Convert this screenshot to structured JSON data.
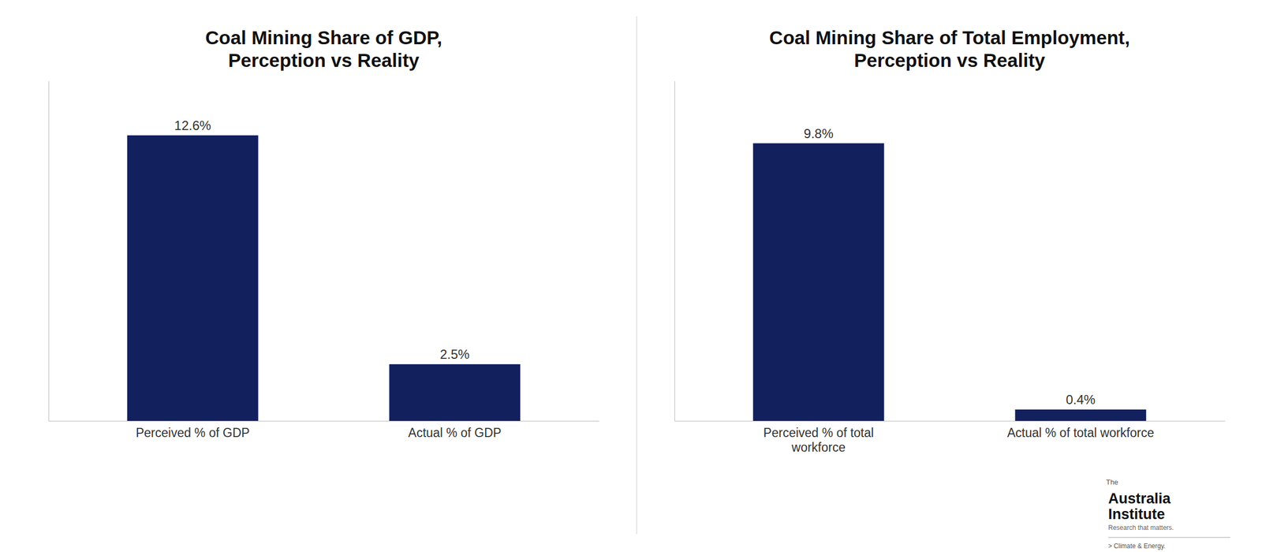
{
  "chart_data": [
    {
      "type": "bar",
      "title": "Coal Mining Share of GDP,\nPerception vs Reality",
      "categories": [
        "Perceived % of GDP",
        "Actual % of GDP"
      ],
      "values": [
        12.6,
        2.5
      ],
      "value_labels": [
        "12.6%",
        "2.5%"
      ],
      "color": "#12205e",
      "ylim": [
        0,
        15
      ],
      "data_labels": true,
      "tick_labels": "x"
    },
    {
      "type": "bar",
      "title": "Coal Mining Share of Total Employment,\nPerception vs Reality",
      "categories": [
        "Perceived % of total\nworkforce",
        "Actual % of total workforce"
      ],
      "values": [
        9.8,
        0.4
      ],
      "value_labels": [
        "9.8%",
        "0.4%"
      ],
      "color": "#12205e",
      "ylim": [
        0,
        12
      ],
      "data_labels": true,
      "tick_labels": "x",
      "annotations": [
        "The",
        "Australia\nInstitute",
        "Research that matters.",
        "> Climate & Energy."
      ]
    }
  ]
}
